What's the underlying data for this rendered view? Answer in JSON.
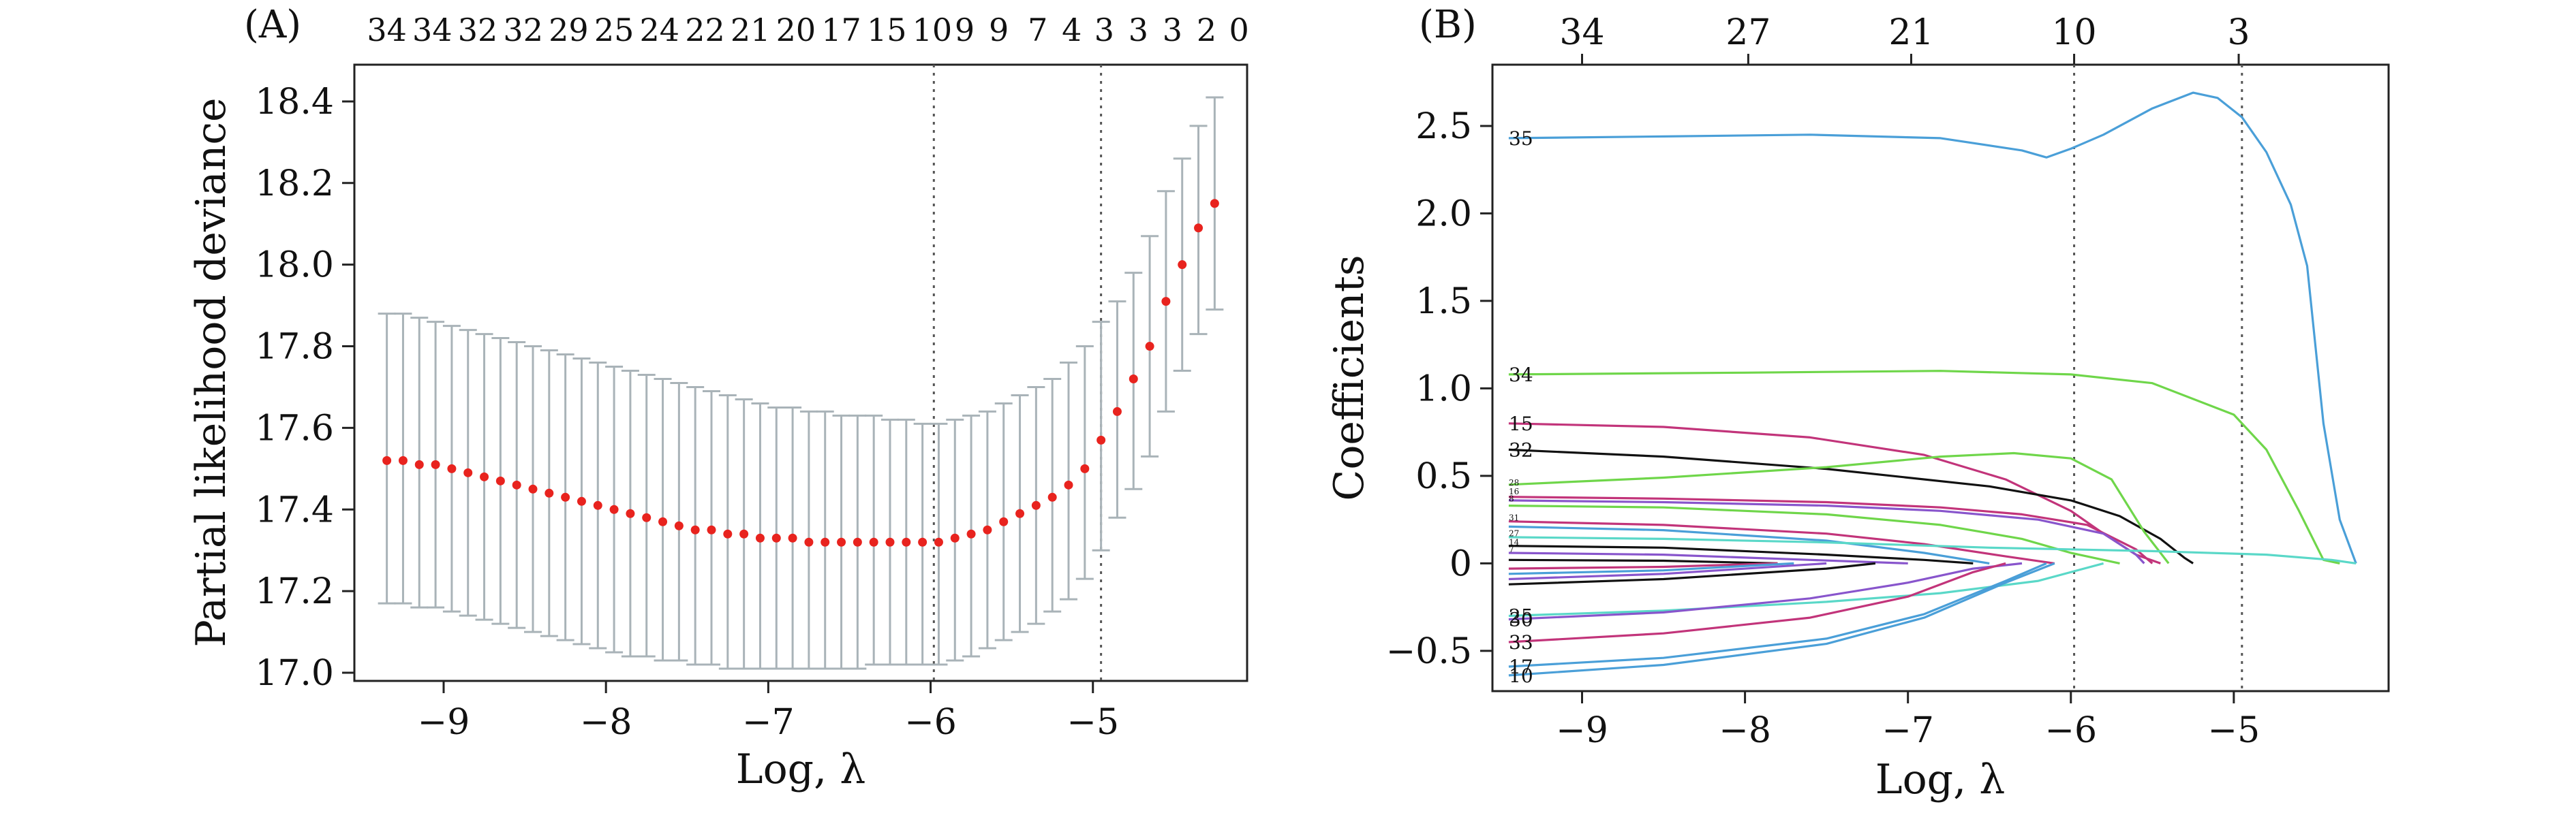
{
  "chart_data": [
    {
      "type": "scatter",
      "panel_label": "(A)",
      "xlabel": "Log, λ",
      "ylabel": "Partial likelihood deviance",
      "xlim": [
        -9.55,
        -4.05
      ],
      "ylim": [
        16.98,
        18.49
      ],
      "x_ticks": [
        "−9",
        "−8",
        "−7",
        "−6",
        "−5"
      ],
      "x_tick_values": [
        -9,
        -8,
        -7,
        -6,
        -5
      ],
      "y_ticks": [
        "17.0",
        "17.2",
        "17.4",
        "17.6",
        "17.8",
        "18.0",
        "18.2",
        "18.4"
      ],
      "y_tick_values": [
        17.0,
        17.2,
        17.4,
        17.6,
        17.8,
        18.0,
        18.2,
        18.4
      ],
      "top_axis_labels": [
        "34",
        "34",
        "32",
        "32",
        "29",
        "25",
        "24",
        "22",
        "21",
        "20",
        "17",
        "15",
        "10",
        "9",
        "9",
        "7",
        "4",
        "3",
        "3",
        "3",
        "2",
        "0"
      ],
      "top_axis_positions": [
        -9.35,
        -9.07,
        -8.79,
        -8.51,
        -8.23,
        -7.95,
        -7.67,
        -7.39,
        -7.11,
        -6.83,
        -6.55,
        -6.27,
        -5.99,
        -5.79,
        -5.58,
        -5.34,
        -5.13,
        -4.93,
        -4.72,
        -4.51,
        -4.3,
        -4.1
      ],
      "vlines": [
        -5.98,
        -4.95
      ],
      "x": [
        -9.35,
        -9.25,
        -9.15,
        -9.05,
        -8.95,
        -8.85,
        -8.75,
        -8.65,
        -8.55,
        -8.45,
        -8.35,
        -8.25,
        -8.15,
        -8.05,
        -7.95,
        -7.85,
        -7.75,
        -7.65,
        -7.55,
        -7.45,
        -7.35,
        -7.25,
        -7.15,
        -7.05,
        -6.95,
        -6.85,
        -6.75,
        -6.65,
        -6.55,
        -6.45,
        -6.35,
        -6.25,
        -6.15,
        -6.05,
        -5.95,
        -5.85,
        -5.75,
        -5.65,
        -5.55,
        -5.45,
        -5.35,
        -5.25,
        -5.15,
        -5.05,
        -4.95,
        -4.85,
        -4.75,
        -4.65,
        -4.55,
        -4.45,
        -4.35,
        -4.25
      ],
      "y": [
        17.52,
        17.52,
        17.51,
        17.51,
        17.5,
        17.49,
        17.48,
        17.47,
        17.46,
        17.45,
        17.44,
        17.43,
        17.42,
        17.41,
        17.4,
        17.39,
        17.38,
        17.37,
        17.36,
        17.35,
        17.35,
        17.34,
        17.34,
        17.33,
        17.33,
        17.33,
        17.32,
        17.32,
        17.32,
        17.32,
        17.32,
        17.32,
        17.32,
        17.32,
        17.32,
        17.33,
        17.34,
        17.35,
        17.37,
        17.39,
        17.41,
        17.43,
        17.46,
        17.5,
        17.57,
        17.64,
        17.72,
        17.8,
        17.91,
        18.0,
        18.09,
        18.15
      ],
      "y_lower": [
        17.17,
        17.17,
        17.16,
        17.16,
        17.15,
        17.14,
        17.13,
        17.12,
        17.11,
        17.1,
        17.09,
        17.08,
        17.07,
        17.06,
        17.05,
        17.04,
        17.04,
        17.03,
        17.03,
        17.02,
        17.02,
        17.01,
        17.01,
        17.01,
        17.01,
        17.01,
        17.01,
        17.01,
        17.01,
        17.01,
        17.02,
        17.02,
        17.02,
        17.02,
        17.02,
        17.03,
        17.04,
        17.06,
        17.08,
        17.1,
        17.12,
        17.15,
        17.18,
        17.23,
        17.3,
        17.38,
        17.45,
        17.53,
        17.64,
        17.74,
        17.83,
        17.89
      ],
      "y_upper": [
        17.88,
        17.88,
        17.87,
        17.86,
        17.85,
        17.84,
        17.83,
        17.82,
        17.81,
        17.8,
        17.79,
        17.78,
        17.77,
        17.76,
        17.75,
        17.74,
        17.73,
        17.72,
        17.71,
        17.7,
        17.69,
        17.68,
        17.67,
        17.66,
        17.65,
        17.65,
        17.64,
        17.64,
        17.63,
        17.63,
        17.63,
        17.62,
        17.62,
        17.61,
        17.61,
        17.62,
        17.63,
        17.64,
        17.66,
        17.68,
        17.7,
        17.72,
        17.76,
        17.8,
        17.86,
        17.91,
        17.98,
        18.07,
        18.18,
        18.26,
        18.34,
        18.41
      ],
      "colors": {
        "point": "#e8231e",
        "errorbar": "#a9b3b8",
        "vline": "#555555"
      }
    },
    {
      "type": "line",
      "panel_label": "(B)",
      "xlabel": "Log, λ",
      "ylabel": "Coefficients",
      "xlim": [
        -9.55,
        -4.05
      ],
      "ylim": [
        -0.73,
        2.85
      ],
      "x_ticks": [
        "−9",
        "−8",
        "−7",
        "−6",
        "−5"
      ],
      "x_tick_values": [
        -9,
        -8,
        -7,
        -6,
        -5
      ],
      "y_ticks": [
        "−0.5",
        "0",
        "0.5",
        "1.0",
        "1.5",
        "2.0",
        "2.5"
      ],
      "y_tick_values": [
        -0.5,
        0,
        0.5,
        1.0,
        1.5,
        2.0,
        2.5
      ],
      "top_axis_labels": [
        "34",
        "27",
        "21",
        "10",
        "3"
      ],
      "top_axis_positions": [
        -9.0,
        -7.98,
        -6.98,
        -5.98,
        -4.97
      ],
      "vlines": [
        -5.98,
        -4.95
      ],
      "series": [
        {
          "name": "35",
          "color": "#4a9fd8",
          "x": [
            -9.45,
            -8.5,
            -7.6,
            -6.8,
            -6.3,
            -6.15,
            -6.0,
            -5.8,
            -5.5,
            -5.25,
            -5.1,
            -4.95,
            -4.8,
            -4.65,
            -4.55,
            -4.45,
            -4.35,
            -4.25
          ],
          "y": [
            2.43,
            2.44,
            2.45,
            2.43,
            2.36,
            2.32,
            2.37,
            2.45,
            2.6,
            2.69,
            2.66,
            2.55,
            2.35,
            2.05,
            1.7,
            0.8,
            0.25,
            0.0
          ]
        },
        {
          "name": "34",
          "color": "#6fd64a",
          "x": [
            -9.45,
            -8.0,
            -6.8,
            -6.0,
            -5.5,
            -5.0,
            -4.8,
            -4.6,
            -4.45,
            -4.35
          ],
          "y": [
            1.08,
            1.09,
            1.1,
            1.08,
            1.03,
            0.85,
            0.65,
            0.3,
            0.02,
            0.0
          ]
        },
        {
          "name": "15",
          "color": "#c2347a",
          "x": [
            -9.45,
            -8.5,
            -7.6,
            -6.9,
            -6.4,
            -6.0,
            -5.8,
            -5.6,
            -5.45
          ],
          "y": [
            0.8,
            0.78,
            0.72,
            0.62,
            0.48,
            0.3,
            0.17,
            0.05,
            0.0
          ]
        },
        {
          "name": "32",
          "color": "#111111",
          "x": [
            -9.45,
            -8.5,
            -7.5,
            -6.5,
            -6.0,
            -5.7,
            -5.45,
            -5.3,
            -5.25
          ],
          "y": [
            0.65,
            0.61,
            0.54,
            0.44,
            0.36,
            0.27,
            0.14,
            0.03,
            0.0
          ]
        },
        {
          "name": "",
          "color": "#6fd64a",
          "x": [
            -9.45,
            -8.5,
            -7.5,
            -6.8,
            -6.35,
            -6.0,
            -5.75,
            -5.55,
            -5.4
          ],
          "y": [
            0.45,
            0.49,
            0.55,
            0.61,
            0.63,
            0.6,
            0.48,
            0.18,
            0.0
          ]
        },
        {
          "name": "",
          "color": "#c2347a",
          "x": [
            -9.45,
            -8.5,
            -7.5,
            -6.8,
            -6.3,
            -5.9,
            -5.6,
            -5.5
          ],
          "y": [
            0.38,
            0.37,
            0.35,
            0.32,
            0.28,
            0.22,
            0.08,
            0.0
          ]
        },
        {
          "name": "",
          "color": "#8855cc",
          "x": [
            -9.45,
            -8.5,
            -7.5,
            -6.8,
            -6.2,
            -5.8,
            -5.6,
            -5.55
          ],
          "y": [
            0.36,
            0.35,
            0.33,
            0.3,
            0.25,
            0.17,
            0.05,
            0.0
          ]
        },
        {
          "name": "",
          "color": "#6fd64a",
          "x": [
            -9.45,
            -8.5,
            -7.5,
            -6.8,
            -6.3,
            -6.0,
            -5.7
          ],
          "y": [
            0.33,
            0.32,
            0.28,
            0.22,
            0.14,
            0.06,
            0.0
          ]
        },
        {
          "name": "",
          "color": "#c2347a",
          "x": [
            -9.45,
            -8.5,
            -7.5,
            -6.9,
            -6.4,
            -6.1
          ],
          "y": [
            0.24,
            0.22,
            0.17,
            0.11,
            0.04,
            0.0
          ]
        },
        {
          "name": "",
          "color": "#4a9fd8",
          "x": [
            -9.45,
            -8.5,
            -7.5,
            -6.9,
            -6.5
          ],
          "y": [
            0.21,
            0.19,
            0.13,
            0.06,
            0.0
          ]
        },
        {
          "name": "",
          "color": "#5ad8c8",
          "x": [
            -9.45,
            -8.5,
            -7.5,
            -6.5,
            -5.5,
            -4.8,
            -4.4,
            -4.25
          ],
          "y": [
            0.15,
            0.14,
            0.12,
            0.09,
            0.07,
            0.05,
            0.02,
            0.0
          ]
        },
        {
          "name": "",
          "color": "#111111",
          "x": [
            -9.45,
            -8.5,
            -7.5,
            -6.9,
            -6.6
          ],
          "y": [
            0.1,
            0.09,
            0.05,
            0.02,
            0.0
          ]
        },
        {
          "name": "",
          "color": "#8855cc",
          "x": [
            -9.45,
            -8.5,
            -7.6,
            -7.0
          ],
          "y": [
            0.06,
            0.05,
            0.02,
            0.0
          ]
        },
        {
          "name": "",
          "color": "#111111",
          "x": [
            -9.45,
            -8.5,
            -7.8
          ],
          "y": [
            0.02,
            0.015,
            0.0
          ]
        },
        {
          "name": "",
          "color": "#c2347a",
          "x": [
            -9.45,
            -8.5,
            -7.8
          ],
          "y": [
            -0.03,
            -0.02,
            0.0
          ]
        },
        {
          "name": "",
          "color": "#4a9fd8",
          "x": [
            -9.45,
            -8.5,
            -7.7
          ],
          "y": [
            -0.06,
            -0.04,
            0.0
          ]
        },
        {
          "name": "",
          "color": "#8855cc",
          "x": [
            -9.45,
            -8.5,
            -7.5
          ],
          "y": [
            -0.09,
            -0.06,
            0.0
          ]
        },
        {
          "name": "",
          "color": "#111111",
          "x": [
            -9.45,
            -8.5,
            -7.5,
            -7.2
          ],
          "y": [
            -0.12,
            -0.09,
            -0.03,
            0.0
          ]
        },
        {
          "name": "25",
          "color": "#5ad8c8",
          "x": [
            -9.45,
            -8.5,
            -7.5,
            -6.8,
            -6.2,
            -5.8
          ],
          "y": [
            -0.3,
            -0.27,
            -0.22,
            -0.17,
            -0.1,
            0.0
          ]
        },
        {
          "name": "30",
          "color": "#8855cc",
          "x": [
            -9.45,
            -8.5,
            -7.6,
            -7.0,
            -6.6,
            -6.3
          ],
          "y": [
            -0.32,
            -0.28,
            -0.2,
            -0.11,
            -0.03,
            0.0
          ]
        },
        {
          "name": "33",
          "color": "#c2347a",
          "x": [
            -9.45,
            -8.5,
            -7.6,
            -7.0,
            -6.6,
            -6.4
          ],
          "y": [
            -0.45,
            -0.4,
            -0.31,
            -0.19,
            -0.05,
            0.0
          ]
        },
        {
          "name": "17",
          "color": "#4a9fd8",
          "x": [
            -9.45,
            -8.5,
            -7.5,
            -6.9,
            -6.4,
            -6.15
          ],
          "y": [
            -0.59,
            -0.54,
            -0.43,
            -0.29,
            -0.1,
            0.0
          ]
        },
        {
          "name": "10",
          "color": "#4a9fd8",
          "x": [
            -9.45,
            -8.5,
            -7.5,
            -6.9,
            -6.4,
            -6.1
          ],
          "y": [
            -0.64,
            -0.58,
            -0.46,
            -0.31,
            -0.11,
            0.0
          ]
        }
      ],
      "small_labels": [
        "28",
        "16",
        "8",
        "31",
        "27",
        "14",
        "7"
      ],
      "colors": {
        "vline": "#555555"
      }
    }
  ]
}
